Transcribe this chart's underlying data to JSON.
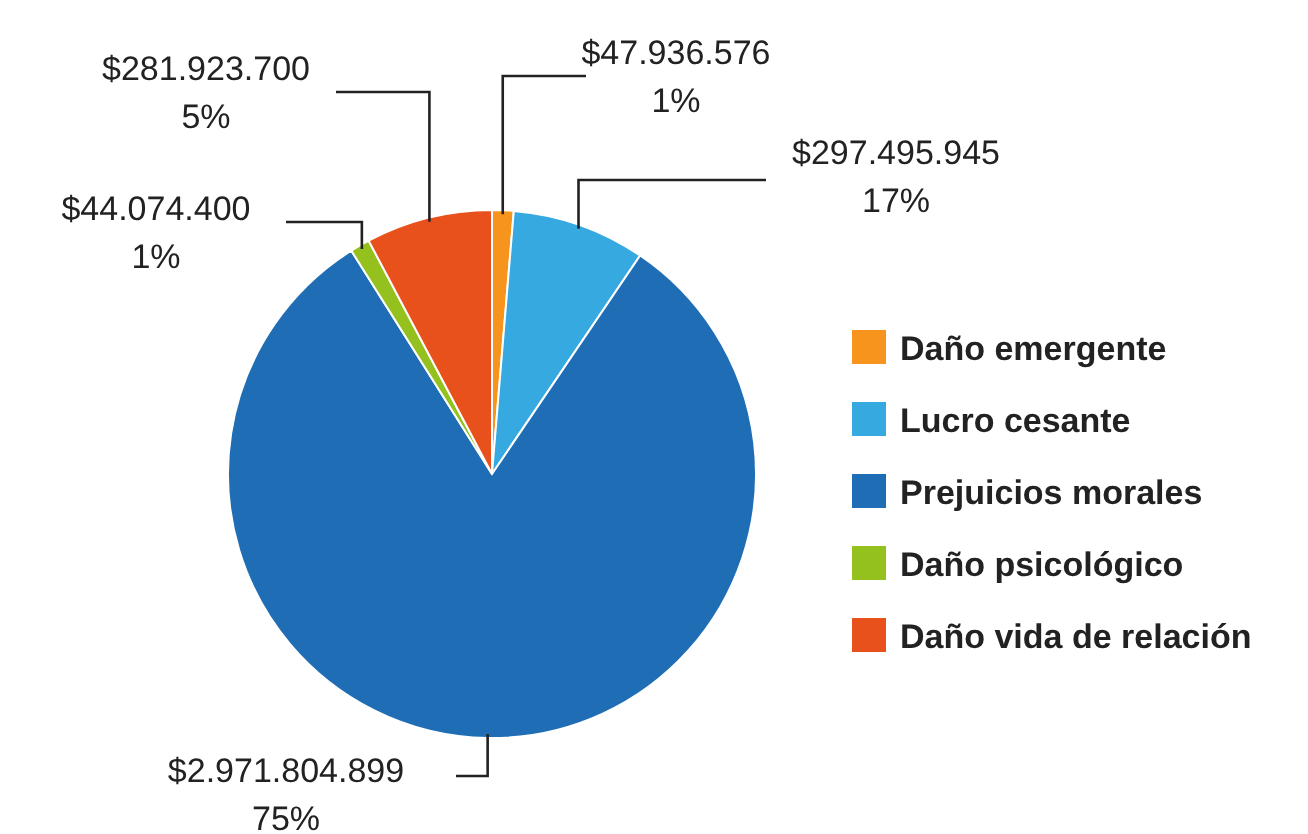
{
  "chart_data": {
    "type": "pie",
    "categories": [
      "Daño emergente",
      "Lucro cesante",
      "Prejuicios morales",
      "Daño psicológico",
      "Daño vida de relación"
    ],
    "values": [
      47936576,
      297495945,
      2971804899,
      44074400,
      281923700
    ],
    "colors": [
      "#f7941d",
      "#36a9e1",
      "#1f6db5",
      "#95c11f",
      "#e8501c"
    ],
    "value_labels": [
      "$47.936.576\n1%",
      "$297.495.945\n17%",
      "$2.971.804.899\n75%",
      "$44.074.400\n1%",
      "$281.923.700\n5%"
    ],
    "legend": "right"
  }
}
